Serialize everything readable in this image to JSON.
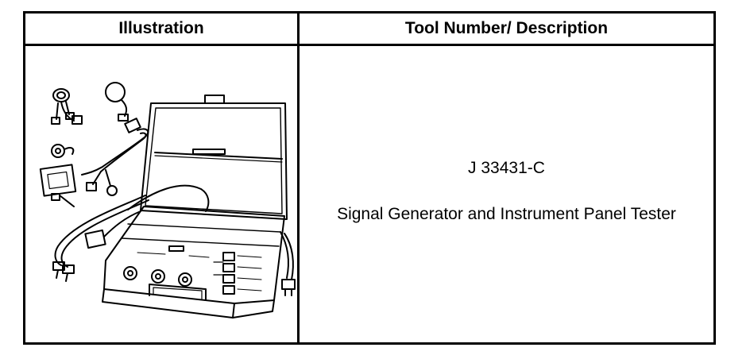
{
  "table": {
    "headers": {
      "illustration": "Illustration",
      "tool_description": "Tool Number/ Description"
    },
    "rows": [
      {
        "illustration": "signal-generator-case-illustration",
        "tool_number": "J 33431-C",
        "description": "Signal Generator and Instrument Panel Tester"
      }
    ]
  },
  "colors": {
    "line": "#000000",
    "background": "#ffffff"
  }
}
